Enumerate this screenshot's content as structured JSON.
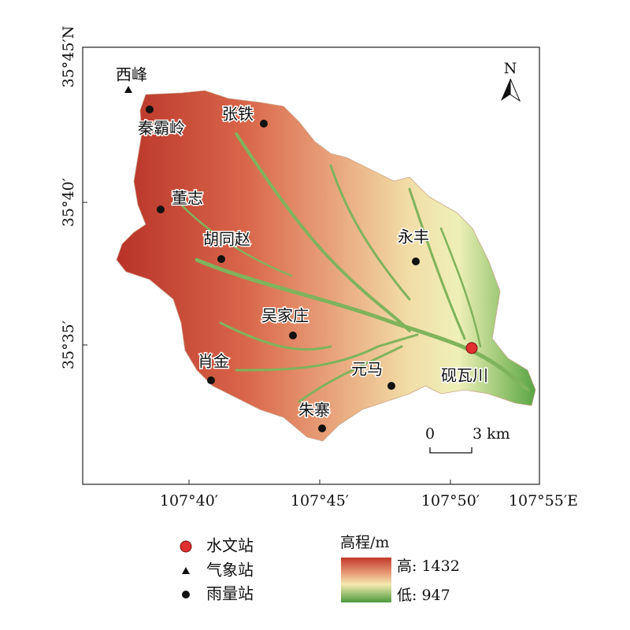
{
  "axes": {
    "lat_ticks": [
      "35°45′N",
      "35°40′",
      "35°35′"
    ],
    "lon_ticks": [
      "107°40′",
      "107°45′",
      "107°50′",
      "107°55′E"
    ]
  },
  "north_arrow": "N",
  "scale_bar": {
    "start": "0",
    "end": "3 km"
  },
  "hydrological_stations": [
    {
      "name": "砚瓦川"
    }
  ],
  "weather_stations": [
    {
      "name": "西峰"
    }
  ],
  "rain_stations": [
    {
      "name": "秦霸岭"
    },
    {
      "name": "张铁"
    },
    {
      "name": "董志"
    },
    {
      "name": "胡同赵"
    },
    {
      "name": "永丰"
    },
    {
      "name": "吴家庄"
    },
    {
      "name": "肖金"
    },
    {
      "name": "元马"
    },
    {
      "name": "朱寨"
    }
  ],
  "legend": {
    "items": [
      "水文站",
      "气象站",
      "雨量站"
    ],
    "elevation": {
      "title": "高程/m",
      "high": "高: 1432",
      "low": "低: 947"
    }
  }
}
